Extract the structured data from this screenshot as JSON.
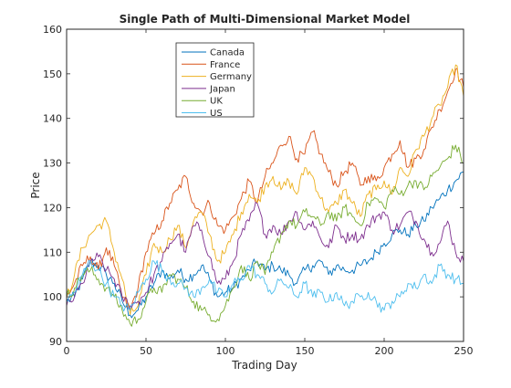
{
  "chart_data": {
    "type": "line",
    "title": "Single Path of Multi-Dimensional Market Model",
    "xlabel": "Trading Day",
    "ylabel": "Price",
    "xlim": [
      0,
      250
    ],
    "ylim": [
      90,
      160
    ],
    "xticks": [
      0,
      50,
      100,
      150,
      200,
      250
    ],
    "yticks": [
      90,
      100,
      110,
      120,
      130,
      140,
      150,
      160
    ],
    "grid": false,
    "legend_position": "top-center",
    "series": [
      {
        "name": "Canada",
        "color": "#0072BD",
        "x": [
          0,
          5,
          10,
          15,
          20,
          25,
          30,
          35,
          40,
          45,
          50,
          55,
          60,
          65,
          70,
          75,
          80,
          85,
          90,
          95,
          100,
          105,
          110,
          115,
          120,
          125,
          130,
          135,
          140,
          145,
          150,
          155,
          160,
          165,
          170,
          175,
          180,
          185,
          190,
          195,
          200,
          205,
          210,
          215,
          220,
          225,
          230,
          235,
          240,
          245,
          250
        ],
        "y": [
          99,
          100,
          104,
          108,
          107,
          105,
          103,
          99,
          96,
          97,
          100,
          103,
          106,
          104,
          106,
          104,
          105,
          107,
          104,
          100,
          101,
          102,
          104,
          106,
          108,
          106,
          107,
          106,
          105,
          103,
          106,
          107,
          108,
          105,
          107,
          106,
          106,
          107,
          108,
          110,
          112,
          114,
          115,
          114,
          116,
          117,
          120,
          122,
          124,
          126,
          128
        ]
      },
      {
        "name": "France",
        "color": "#D95319",
        "x": [
          0,
          5,
          10,
          15,
          20,
          25,
          30,
          35,
          40,
          45,
          50,
          55,
          60,
          65,
          70,
          75,
          80,
          85,
          90,
          95,
          100,
          105,
          110,
          115,
          120,
          125,
          130,
          135,
          140,
          145,
          150,
          155,
          160,
          165,
          170,
          175,
          180,
          185,
          190,
          195,
          200,
          205,
          210,
          215,
          220,
          225,
          230,
          235,
          240,
          245,
          250
        ],
        "y": [
          100,
          103,
          107,
          109,
          106,
          111,
          107,
          100,
          97,
          102,
          110,
          114,
          117,
          121,
          124,
          127,
          121,
          119,
          121,
          116,
          115,
          118,
          122,
          126,
          121,
          127,
          130,
          134,
          136,
          131,
          132,
          137,
          132,
          128,
          125,
          128,
          130,
          125,
          127,
          126,
          129,
          132,
          135,
          129,
          131,
          133,
          138,
          142,
          146,
          151,
          147
        ]
      },
      {
        "name": "Germany",
        "color": "#EDB120",
        "x": [
          0,
          5,
          10,
          15,
          20,
          25,
          30,
          35,
          40,
          45,
          50,
          55,
          60,
          65,
          70,
          75,
          80,
          85,
          90,
          95,
          100,
          105,
          110,
          115,
          120,
          125,
          130,
          135,
          140,
          145,
          150,
          155,
          160,
          165,
          170,
          175,
          180,
          185,
          190,
          195,
          200,
          205,
          210,
          215,
          220,
          225,
          230,
          235,
          240,
          245,
          250
        ],
        "y": [
          100,
          105,
          111,
          114,
          116,
          117,
          110,
          104,
          96,
          98,
          105,
          112,
          110,
          113,
          116,
          111,
          117,
          119,
          114,
          108,
          110,
          114,
          119,
          123,
          121,
          125,
          127,
          124,
          126,
          123,
          129,
          127,
          122,
          119,
          121,
          124,
          121,
          118,
          123,
          124,
          126,
          123,
          129,
          127,
          133,
          136,
          140,
          143,
          147,
          152,
          145
        ]
      },
      {
        "name": "Japan",
        "color": "#7E2F8E",
        "x": [
          0,
          5,
          10,
          15,
          20,
          25,
          30,
          35,
          40,
          45,
          50,
          55,
          60,
          65,
          70,
          75,
          80,
          85,
          90,
          95,
          100,
          105,
          110,
          115,
          120,
          125,
          130,
          135,
          140,
          145,
          150,
          155,
          160,
          165,
          170,
          175,
          180,
          185,
          190,
          195,
          200,
          205,
          210,
          215,
          220,
          225,
          230,
          235,
          240,
          245,
          250
        ],
        "y": [
          98,
          100,
          103,
          108,
          109,
          106,
          104,
          100,
          98,
          99,
          101,
          105,
          108,
          112,
          114,
          110,
          116,
          115,
          109,
          103,
          104,
          108,
          114,
          117,
          121,
          114,
          116,
          114,
          117,
          119,
          115,
          117,
          113,
          111,
          116,
          113,
          114,
          113,
          116,
          118,
          119,
          115,
          116,
          119,
          117,
          113,
          110,
          112,
          117,
          110,
          108
        ]
      },
      {
        "name": "UK",
        "color": "#77AC30",
        "x": [
          0,
          5,
          10,
          15,
          20,
          25,
          30,
          35,
          40,
          45,
          50,
          55,
          60,
          65,
          70,
          75,
          80,
          85,
          90,
          95,
          100,
          105,
          110,
          115,
          120,
          125,
          130,
          135,
          140,
          145,
          150,
          155,
          160,
          165,
          170,
          175,
          180,
          185,
          190,
          195,
          200,
          205,
          210,
          215,
          220,
          225,
          230,
          235,
          240,
          245,
          250
        ],
        "y": [
          100,
          102,
          105,
          106,
          104,
          102,
          100,
          97,
          94,
          95,
          99,
          102,
          101,
          105,
          104,
          102,
          99,
          97,
          96,
          95,
          98,
          102,
          107,
          104,
          108,
          105,
          110,
          114,
          117,
          116,
          119,
          118,
          116,
          119,
          117,
          120,
          118,
          116,
          121,
          122,
          120,
          124,
          123,
          125,
          126,
          124,
          127,
          129,
          131,
          134,
          130
        ]
      },
      {
        "name": "US",
        "color": "#4DBEEE",
        "x": [
          0,
          5,
          10,
          15,
          20,
          25,
          30,
          35,
          40,
          45,
          50,
          55,
          60,
          65,
          70,
          75,
          80,
          85,
          90,
          95,
          100,
          105,
          110,
          115,
          120,
          125,
          130,
          135,
          140,
          145,
          150,
          155,
          160,
          165,
          170,
          175,
          180,
          185,
          190,
          195,
          200,
          205,
          210,
          215,
          220,
          225,
          230,
          235,
          240,
          245,
          250
        ],
        "y": [
          99,
          101,
          105,
          108,
          106,
          103,
          100,
          98,
          97,
          101,
          104,
          108,
          106,
          104,
          103,
          102,
          100,
          102,
          104,
          101,
          100,
          103,
          104,
          107,
          105,
          103,
          101,
          104,
          102,
          100,
          103,
          100,
          101,
          99,
          101,
          98,
          99,
          100,
          101,
          99,
          97,
          99,
          100,
          103,
          102,
          105,
          103,
          107,
          105,
          104,
          103
        ]
      }
    ]
  }
}
